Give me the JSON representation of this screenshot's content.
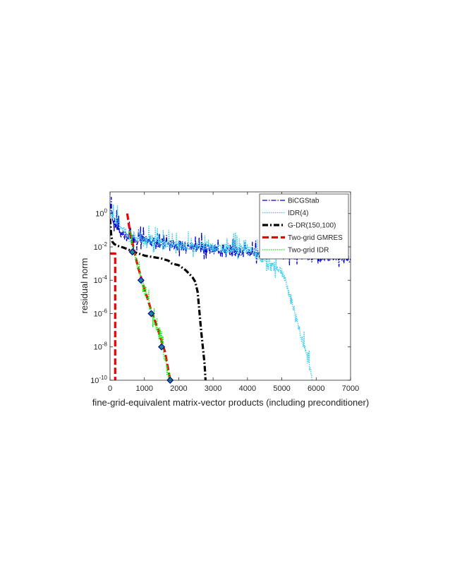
{
  "chart_data": {
    "type": "line",
    "title": "",
    "xlabel": "fine-grid-equivalent matrix-vector products (including preconditioner)",
    "ylabel": "residual norm",
    "xlim": [
      0,
      7000
    ],
    "ylim": [
      1e-10,
      20
    ],
    "yscale": "log",
    "x_ticks": [
      0,
      1000,
      2000,
      3000,
      4000,
      5000,
      6000,
      7000
    ],
    "y_ticks": [
      {
        "value": 1,
        "base": "10",
        "exp": "0"
      },
      {
        "value": 0.01,
        "base": "10",
        "exp": "-2"
      },
      {
        "value": 0.0001,
        "base": "10",
        "exp": "-4"
      },
      {
        "value": 1e-06,
        "base": "10",
        "exp": "-6"
      },
      {
        "value": 1e-08,
        "base": "10",
        "exp": "-8"
      },
      {
        "value": 1e-10,
        "base": "10",
        "exp": "-10"
      }
    ],
    "grid": false,
    "legend_position": "top-right",
    "series": [
      {
        "name": "BiCGStab",
        "color": "#0000cc",
        "dash": "7,2,1.5,2",
        "width": 1.3,
        "style": "noisy",
        "x": [
          0,
          100,
          300,
          500,
          1000,
          2000,
          3000,
          4000,
          5000,
          6000,
          7000
        ],
        "y": [
          3,
          0.3,
          0.06,
          0.03,
          0.02,
          0.01,
          0.006,
          0.004,
          0.003,
          0.0025,
          0.002
        ]
      },
      {
        "name": "IDR(4)",
        "color": "#33ccee",
        "dash": "1.5,1.5",
        "width": 1.3,
        "style": "noisy",
        "x": [
          0,
          500,
          1000,
          2000,
          3000,
          4000,
          5000,
          5300,
          5600,
          5900
        ],
        "y": [
          1,
          0.05,
          0.02,
          0.01,
          0.008,
          0.006,
          0.0003,
          4e-06,
          2e-08,
          1e-10
        ]
      },
      {
        "name": "G-DR(150,100)",
        "color": "#000000",
        "dash": "8,3,2,3",
        "width": 3.2,
        "style": "smooth",
        "x": [
          0,
          30,
          70,
          120,
          200,
          400,
          700,
          1000,
          1500,
          1700,
          1800,
          2000,
          2200,
          2300,
          2400,
          2480,
          2550,
          2650,
          2750,
          2780
        ],
        "y": [
          0.5,
          0.06,
          0.02,
          0.015,
          0.012,
          0.009,
          0.005,
          0.003,
          0.002,
          0.0015,
          0.001,
          0.0008,
          0.0004,
          0.00025,
          0.00015,
          8e-05,
          2e-05,
          1e-07,
          1e-09,
          1e-10
        ]
      },
      {
        "name": "Two-grid GMRES",
        "color": "#ee0000",
        "dash": "9,4",
        "width": 3.2,
        "style": "segments",
        "segments": [
          {
            "x": [
              0,
              150,
              150
            ],
            "y": [
              0.004,
              0.004,
              1e-10
            ]
          },
          {
            "x": [
              500,
              550,
              600,
              800,
              1000,
              1200,
              1400,
              1600,
              1750
            ],
            "y": [
              1,
              0.2,
              0.05,
              0.0008,
              3e-05,
              1.5e-06,
              1e-07,
              5e-09,
              1e-10
            ]
          }
        ]
      },
      {
        "name": "Two-grid IDR",
        "color": "#00ee00",
        "dash": "1.5,1.5",
        "width": 1.3,
        "style": "noisy",
        "x": [
          550,
          650,
          900,
          1200,
          1500,
          1750
        ],
        "y": [
          0.1,
          0.01,
          0.0001,
          1e-06,
          1e-08,
          1e-10
        ],
        "markers": {
          "shape": "diamond",
          "fill": "#1a8a8a",
          "stroke": "#0000aa",
          "x": [
            650,
            900,
            1200,
            1500,
            1750
          ],
          "y": [
            0.005,
            0.0001,
            1e-06,
            1e-08,
            1e-10
          ]
        }
      }
    ]
  }
}
